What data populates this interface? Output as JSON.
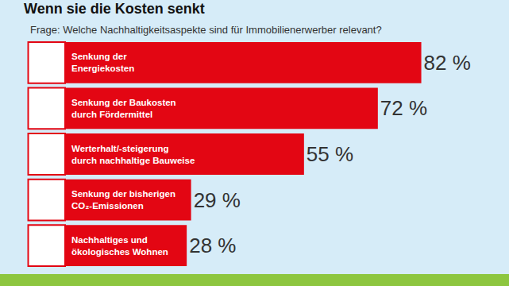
{
  "chart_data": {
    "type": "bar",
    "orientation": "horizontal",
    "title": "Wenn sie die Kosten senkt",
    "subtitle": "Frage: Welche Nachhaltigkeitsaspekte sind für Immobilienerwerber relevant?",
    "categories": [
      "Senkung der Energiekosten",
      "Senkung der Baukosten durch Fördermittel",
      "Werterhalt/-steigerung durch nachhaltige Bauweise",
      "Senkung der bisherigen CO₂-Emissionen",
      "Nachhaltiges und ökologisches Wohnen"
    ],
    "values": [
      82,
      72,
      55,
      29,
      28
    ],
    "value_labels": [
      "82 %",
      "72 %",
      "55 %",
      "29 %",
      "28 %"
    ],
    "color": "#e30613",
    "xlim": [
      0,
      100
    ],
    "data_labels": true,
    "tick_labels": false,
    "grid": false
  }
}
